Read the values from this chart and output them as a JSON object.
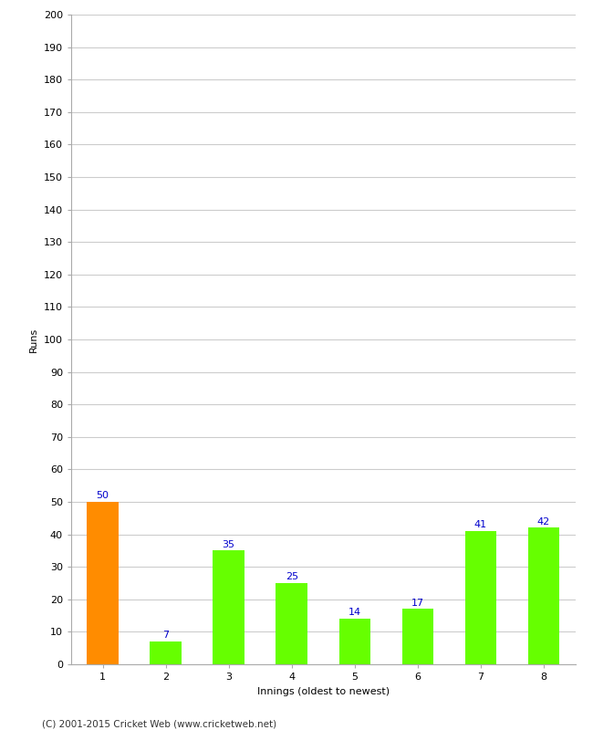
{
  "categories": [
    "1",
    "2",
    "3",
    "4",
    "5",
    "6",
    "7",
    "8"
  ],
  "values": [
    50,
    7,
    35,
    25,
    14,
    17,
    41,
    42
  ],
  "bar_colors": [
    "#FF8C00",
    "#66FF00",
    "#66FF00",
    "#66FF00",
    "#66FF00",
    "#66FF00",
    "#66FF00",
    "#66FF00"
  ],
  "xlabel": "Innings (oldest to newest)",
  "ylabel": "Runs",
  "ylim": [
    0,
    200
  ],
  "yticks": [
    0,
    10,
    20,
    30,
    40,
    50,
    60,
    70,
    80,
    90,
    100,
    110,
    120,
    130,
    140,
    150,
    160,
    170,
    180,
    190,
    200
  ],
  "label_color": "#0000CC",
  "label_fontsize": 8,
  "ylabel_fontsize": 8,
  "xlabel_fontsize": 8,
  "tick_fontsize": 8,
  "footer": "(C) 2001-2015 Cricket Web (www.cricketweb.net)",
  "background_color": "#FFFFFF",
  "grid_color": "#CCCCCC",
  "bar_width": 0.5
}
